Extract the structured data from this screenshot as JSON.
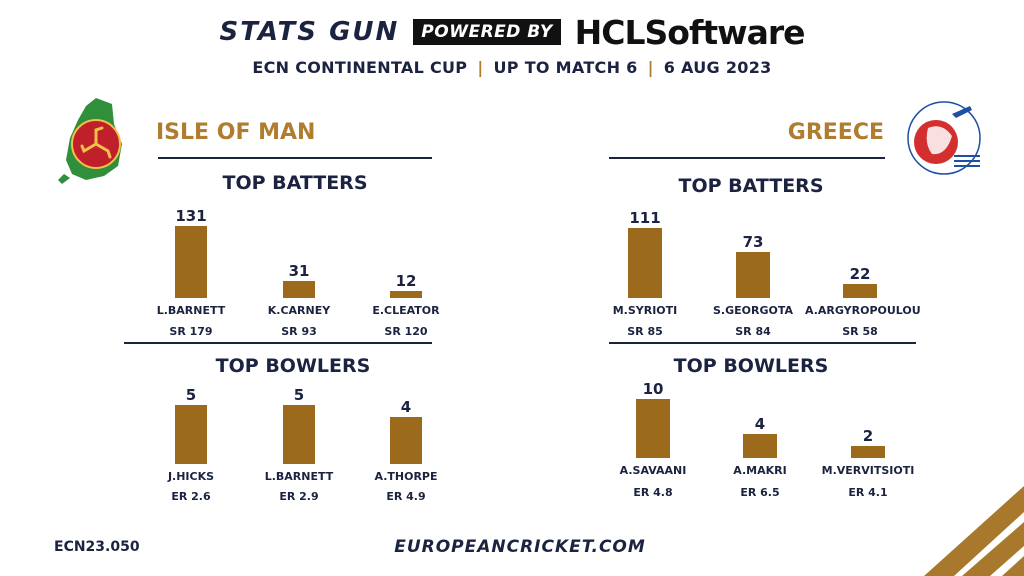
{
  "header": {
    "brand": "STATS GUN",
    "powered_by": "POWERED BY",
    "sponsor": "HCLSoftware",
    "competition": "ECN CONTINENTAL CUP",
    "scope": "UP TO MATCH 6",
    "date": "6 AUG 2023"
  },
  "colors": {
    "bar": "#9c6a1c",
    "accent": "#b07c2e",
    "navy": "#1b2340"
  },
  "left_team": {
    "name": "ISLE OF MAN",
    "logo_icon": "isle-of-man-cricket-logo"
  },
  "right_team": {
    "name": "GREECE",
    "logo_icon": "hellenic-cricket-federation-logo"
  },
  "chart_data": [
    {
      "type": "bar",
      "team": "ISLE OF MAN",
      "title": "TOP BATTERS",
      "categories": [
        "L.BARNETT",
        "K.CARNEY",
        "E.CLEATOR"
      ],
      "values": [
        131,
        31,
        12
      ],
      "sublabels": [
        "SR 179",
        "SR 93",
        "SR 120"
      ]
    },
    {
      "type": "bar",
      "team": "ISLE OF MAN",
      "title": "TOP BOWLERS",
      "categories": [
        "J.HICKS",
        "L.BARNETT",
        "A.THORPE"
      ],
      "values": [
        5,
        5,
        4
      ],
      "sublabels": [
        "ER 2.6",
        "ER 2.9",
        "ER 4.9"
      ]
    },
    {
      "type": "bar",
      "team": "GREECE",
      "title": "TOP BATTERS",
      "categories": [
        "M.SYRIOTI",
        "S.GEORGOTA",
        "A.ARGYROPOULOU"
      ],
      "values": [
        111,
        73,
        22
      ],
      "sublabels": [
        "SR 85",
        "SR 84",
        "SR 58"
      ]
    },
    {
      "type": "bar",
      "team": "GREECE",
      "title": "TOP BOWLERS",
      "categories": [
        "A.SAVAANI",
        "A.MAKRI",
        "M.VERVITSIOTI"
      ],
      "values": [
        10,
        4,
        2
      ],
      "sublabels": [
        "ER 4.8",
        "ER 6.5",
        "ER 4.1"
      ]
    }
  ],
  "footer": {
    "code": "ECN23.050",
    "url": "EUROPEANCRICKET.COM"
  }
}
